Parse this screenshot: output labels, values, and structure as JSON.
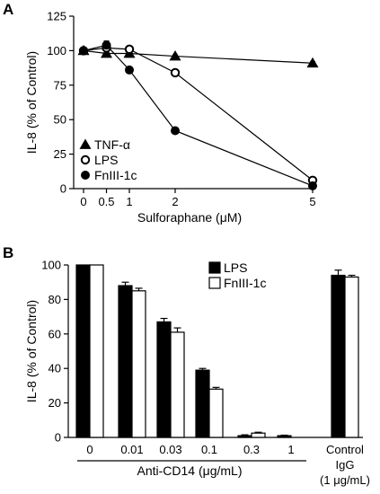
{
  "chart_data": [
    {
      "panel": "A",
      "type": "line",
      "xlabel": "Sulforaphane (μM)",
      "ylabel": "IL-8 (% of Control)",
      "xlim": [
        0,
        5
      ],
      "ylim": [
        0,
        125
      ],
      "x": [
        0,
        0.5,
        1,
        2,
        5
      ],
      "x_tick_labels": [
        "0",
        "0.5",
        "1",
        "2",
        "5"
      ],
      "y_ticks": [
        0,
        25,
        50,
        75,
        100,
        125
      ],
      "grid": false,
      "legend": "bottom-left",
      "series": [
        {
          "name": "TNF-α",
          "marker": "triangle",
          "values": [
            100,
            98,
            98,
            96,
            91
          ],
          "errors": [
            1,
            1,
            1,
            1,
            1
          ]
        },
        {
          "name": "LPS",
          "marker": "open-circle",
          "values": [
            100,
            102,
            101,
            84,
            6
          ],
          "errors": [
            2,
            3,
            2,
            2,
            1
          ]
        },
        {
          "name": "FnIII-1c",
          "marker": "filled-circle",
          "values": [
            100,
            104,
            86,
            42,
            2
          ],
          "errors": [
            2,
            3,
            2,
            2,
            1
          ]
        }
      ]
    },
    {
      "panel": "B",
      "type": "bar",
      "ylabel": "IL-8 (% of Control)",
      "ylim": [
        0,
        100
      ],
      "y_ticks": [
        0,
        20,
        40,
        60,
        80,
        100
      ],
      "categories": [
        "0",
        "0.01",
        "0.03",
        "0.1",
        "0.3",
        "1",
        "Control IgG (1 μg/mL)"
      ],
      "category_lines": [
        [
          "0"
        ],
        [
          "0.01"
        ],
        [
          "0.03"
        ],
        [
          "0.1"
        ],
        [
          "0.3"
        ],
        [
          "1"
        ],
        [
          "Control",
          "IgG",
          "(1 μg/mL)"
        ]
      ],
      "group_label": "Anti-CD14 (μg/mL)",
      "grid": false,
      "legend": "top-right",
      "series": [
        {
          "name": "LPS",
          "fill": "#000000",
          "values": [
            100,
            88,
            67,
            39,
            1,
            1,
            94
          ],
          "errors": [
            0,
            2,
            2,
            1,
            0.5,
            0.3,
            3
          ]
        },
        {
          "name": "FnIII-1c",
          "fill": "#ffffff",
          "values": [
            100,
            85,
            61,
            28,
            2.5,
            0,
            93
          ],
          "errors": [
            0,
            1.5,
            2.5,
            1,
            0.5,
            0,
            1
          ]
        }
      ]
    }
  ]
}
